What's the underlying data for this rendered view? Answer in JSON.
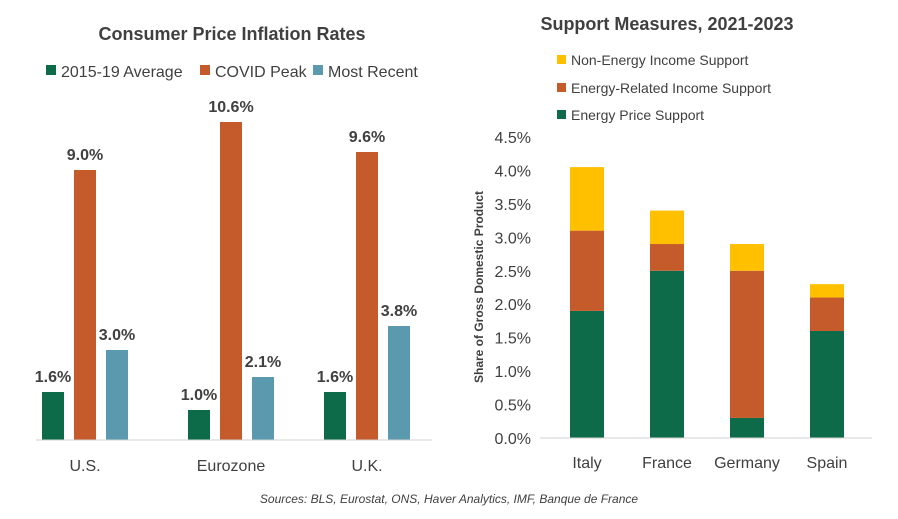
{
  "chart_data": [
    {
      "type": "bar",
      "title": "Consumer Price Inflation Rates",
      "categories": [
        "U.S.",
        "Eurozone",
        "U.K."
      ],
      "series": [
        {
          "name": "2015-19 Average",
          "color": "#0E6B4A",
          "values": [
            1.6,
            1.0,
            1.6
          ],
          "labels": [
            "1.6%",
            "1.0%",
            "1.6%"
          ]
        },
        {
          "name": "COVID Peak",
          "color": "#C55A2B",
          "values": [
            9.0,
            10.6,
            9.6
          ],
          "labels": [
            "9.0%",
            "10.6%",
            "9.6%"
          ]
        },
        {
          "name": "Most Recent",
          "color": "#5B9AAE",
          "values": [
            3.0,
            2.1,
            3.8
          ],
          "labels": [
            "3.0%",
            "2.1%",
            "3.8%"
          ]
        }
      ],
      "ylim": [
        0,
        11
      ],
      "legend_position": "top"
    },
    {
      "type": "bar",
      "stacked": true,
      "title": "Support Measures, 2021-2023",
      "categories": [
        "Italy",
        "France",
        "Germany",
        "Spain"
      ],
      "series": [
        {
          "name": "Energy Price Support",
          "color": "#0E6B4A",
          "values": [
            1.9,
            2.5,
            0.3,
            1.6
          ]
        },
        {
          "name": "Energy-Related Income Support",
          "color": "#C55A2B",
          "values": [
            1.2,
            0.4,
            2.2,
            0.5
          ]
        },
        {
          "name": "Non-Energy Income Support",
          "color": "#FFC000",
          "values": [
            0.95,
            0.5,
            0.4,
            0.2
          ]
        }
      ],
      "legend_order": [
        "Non-Energy Income Support",
        "Energy-Related Income Support",
        "Energy Price Support"
      ],
      "ylabel": "Share of Gross Domestic Product",
      "ylim": [
        0,
        4.5
      ],
      "yticks": [
        "0.0%",
        "0.5%",
        "1.0%",
        "1.5%",
        "2.0%",
        "2.5%",
        "3.0%",
        "3.5%",
        "4.0%",
        "4.5%"
      ],
      "ytick_values": [
        0,
        0.5,
        1.0,
        1.5,
        2.0,
        2.5,
        3.0,
        3.5,
        4.0,
        4.5
      ],
      "legend_position": "top-left"
    }
  ],
  "source": "Sources: BLS, Eurostat, ONS, Haver Analytics, IMF, Banque de France"
}
